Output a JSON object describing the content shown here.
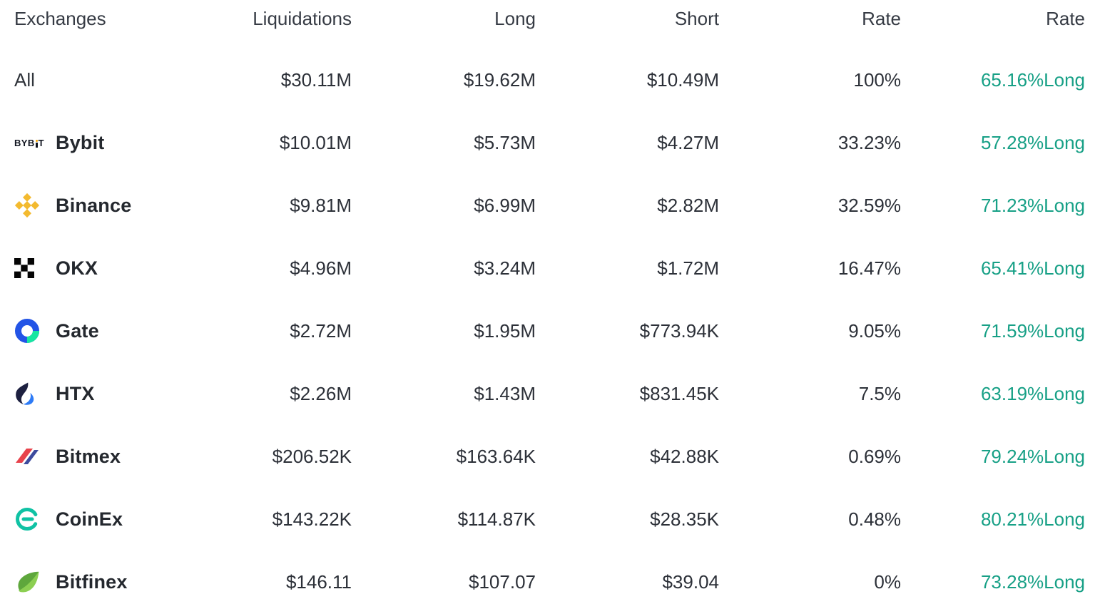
{
  "chart_data": {
    "type": "table",
    "columns": [
      "Exchanges",
      "Liquidations",
      "Long",
      "Short",
      "Rate",
      "Rate"
    ],
    "rows": [
      {
        "exchange": "All",
        "icon": null,
        "liquidations": "$30.11M",
        "long": "$19.62M",
        "short": "$10.49M",
        "rate": "100%",
        "long_rate": "65.16%Long"
      },
      {
        "exchange": "Bybit",
        "icon": "bybit",
        "liquidations": "$10.01M",
        "long": "$5.73M",
        "short": "$4.27M",
        "rate": "33.23%",
        "long_rate": "57.28%Long"
      },
      {
        "exchange": "Binance",
        "icon": "binance",
        "liquidations": "$9.81M",
        "long": "$6.99M",
        "short": "$2.82M",
        "rate": "32.59%",
        "long_rate": "71.23%Long"
      },
      {
        "exchange": "OKX",
        "icon": "okx",
        "liquidations": "$4.96M",
        "long": "$3.24M",
        "short": "$1.72M",
        "rate": "16.47%",
        "long_rate": "65.41%Long"
      },
      {
        "exchange": "Gate",
        "icon": "gate",
        "liquidations": "$2.72M",
        "long": "$1.95M",
        "short": "$773.94K",
        "rate": "9.05%",
        "long_rate": "71.59%Long"
      },
      {
        "exchange": "HTX",
        "icon": "htx",
        "liquidations": "$2.26M",
        "long": "$1.43M",
        "short": "$831.45K",
        "rate": "7.5%",
        "long_rate": "63.19%Long"
      },
      {
        "exchange": "Bitmex",
        "icon": "bitmex",
        "liquidations": "$206.52K",
        "long": "$163.64K",
        "short": "$42.88K",
        "rate": "0.69%",
        "long_rate": "79.24%Long"
      },
      {
        "exchange": "CoinEx",
        "icon": "coinex",
        "liquidations": "$143.22K",
        "long": "$114.87K",
        "short": "$28.35K",
        "rate": "0.48%",
        "long_rate": "80.21%Long"
      },
      {
        "exchange": "Bitfinex",
        "icon": "bitfinex",
        "liquidations": "$146.11",
        "long": "$107.07",
        "short": "$39.04",
        "rate": "0%",
        "long_rate": "73.28%Long"
      }
    ]
  },
  "colors": {
    "long_rate_text": "#17a086",
    "bybit_accent": "#f7a600",
    "binance_yellow": "#F3BA2F",
    "gate_blue": "#2354e6",
    "gate_green": "#17e6a1"
  }
}
